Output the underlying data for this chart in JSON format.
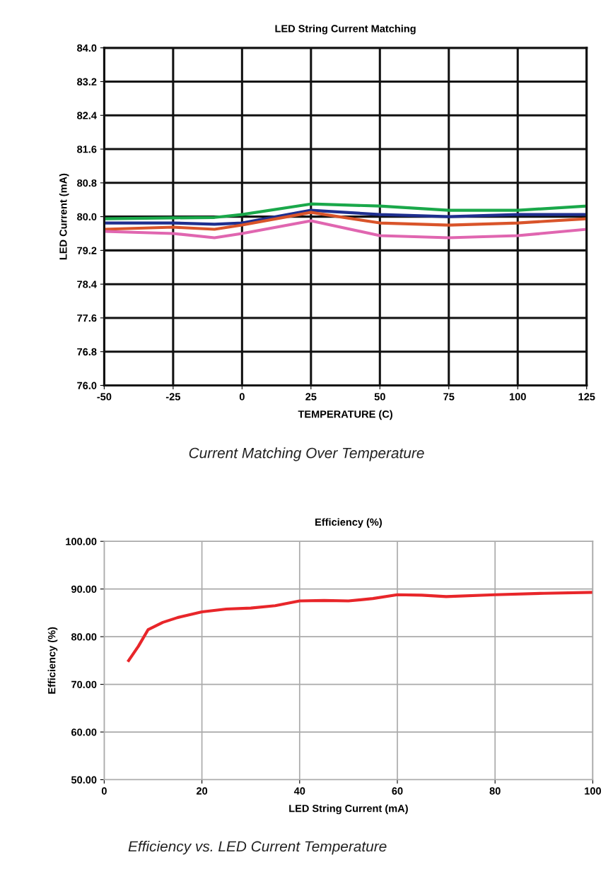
{
  "chart_data": [
    {
      "type": "line",
      "title": "LED String Current Matching",
      "xlabel": "TEMPERATURE (C)",
      "ylabel": "LED Current (mA)",
      "annotations": [
        "Current Matching Over Temperature"
      ],
      "x": [
        -50,
        -25,
        -10,
        0,
        25,
        50,
        75,
        100,
        125
      ],
      "series": [
        {
          "color": "#1aa84a",
          "values": [
            79.95,
            79.97,
            79.98,
            80.05,
            80.3,
            80.25,
            80.15,
            80.15,
            80.25
          ]
        },
        {
          "color": "#1f2f8f",
          "values": [
            79.85,
            79.85,
            79.82,
            79.85,
            80.15,
            80.05,
            80.0,
            80.05,
            80.05
          ]
        },
        {
          "color": "#d9542a",
          "values": [
            79.7,
            79.75,
            79.7,
            79.8,
            80.1,
            79.85,
            79.8,
            79.85,
            79.95
          ]
        },
        {
          "color": "#e066b0",
          "values": [
            79.65,
            79.6,
            79.5,
            79.6,
            79.9,
            79.55,
            79.5,
            79.55,
            79.7
          ]
        }
      ],
      "xlim": [
        -50,
        125
      ],
      "xticks": [
        -50,
        -25,
        0,
        25,
        50,
        75,
        100,
        125
      ],
      "ylim": [
        76,
        84
      ],
      "yticks": [
        {
          "value": 76,
          "label": "76.0"
        },
        {
          "value": 76.8,
          "label": "76.8"
        },
        {
          "value": 77.6,
          "label": "77.6"
        },
        {
          "value": 78.4,
          "label": "78.4"
        },
        {
          "value": 79.2,
          "label": "79.2"
        },
        {
          "value": 80,
          "label": "80.0"
        },
        {
          "value": 80.8,
          "label": "80.8"
        },
        {
          "value": 81.6,
          "label": "81.6"
        },
        {
          "value": 82.4,
          "label": "82.4"
        },
        {
          "value": 83.2,
          "label": "83.2"
        },
        {
          "value": 84,
          "label": "84.0"
        }
      ],
      "grid": true,
      "marker": "none",
      "line_style": "solid"
    },
    {
      "type": "line",
      "title": "Efficiency (%)",
      "xlabel": "LED String Current (mA)",
      "ylabel": "Efficiency (%)",
      "annotations": [
        "Efficiency vs. LED Current Temperature"
      ],
      "x": [
        5,
        7,
        9,
        12,
        15,
        20,
        25,
        30,
        35,
        40,
        45,
        50,
        55,
        60,
        65,
        70,
        80,
        90,
        100
      ],
      "series": [
        {
          "color": "#e8262a",
          "values": [
            75,
            78,
            81.5,
            83,
            84,
            85.2,
            85.8,
            86,
            86.5,
            87.5,
            87.6,
            87.5,
            88,
            88.8,
            88.7,
            88.4,
            88.8,
            89.1,
            89.3
          ]
        }
      ],
      "xlim": [
        0,
        100
      ],
      "xticks": [
        0,
        20,
        40,
        60,
        80,
        100
      ],
      "ylim": [
        50,
        100
      ],
      "yticks": [
        {
          "value": 50,
          "label": "50.00"
        },
        {
          "value": 60,
          "label": "60.00"
        },
        {
          "value": 70,
          "label": "70.00"
        },
        {
          "value": 80,
          "label": "80.00"
        },
        {
          "value": 90,
          "label": "90.00"
        },
        {
          "value": 100,
          "label": "100.00"
        }
      ],
      "grid": true,
      "marker": "none",
      "line_style": "solid"
    }
  ]
}
